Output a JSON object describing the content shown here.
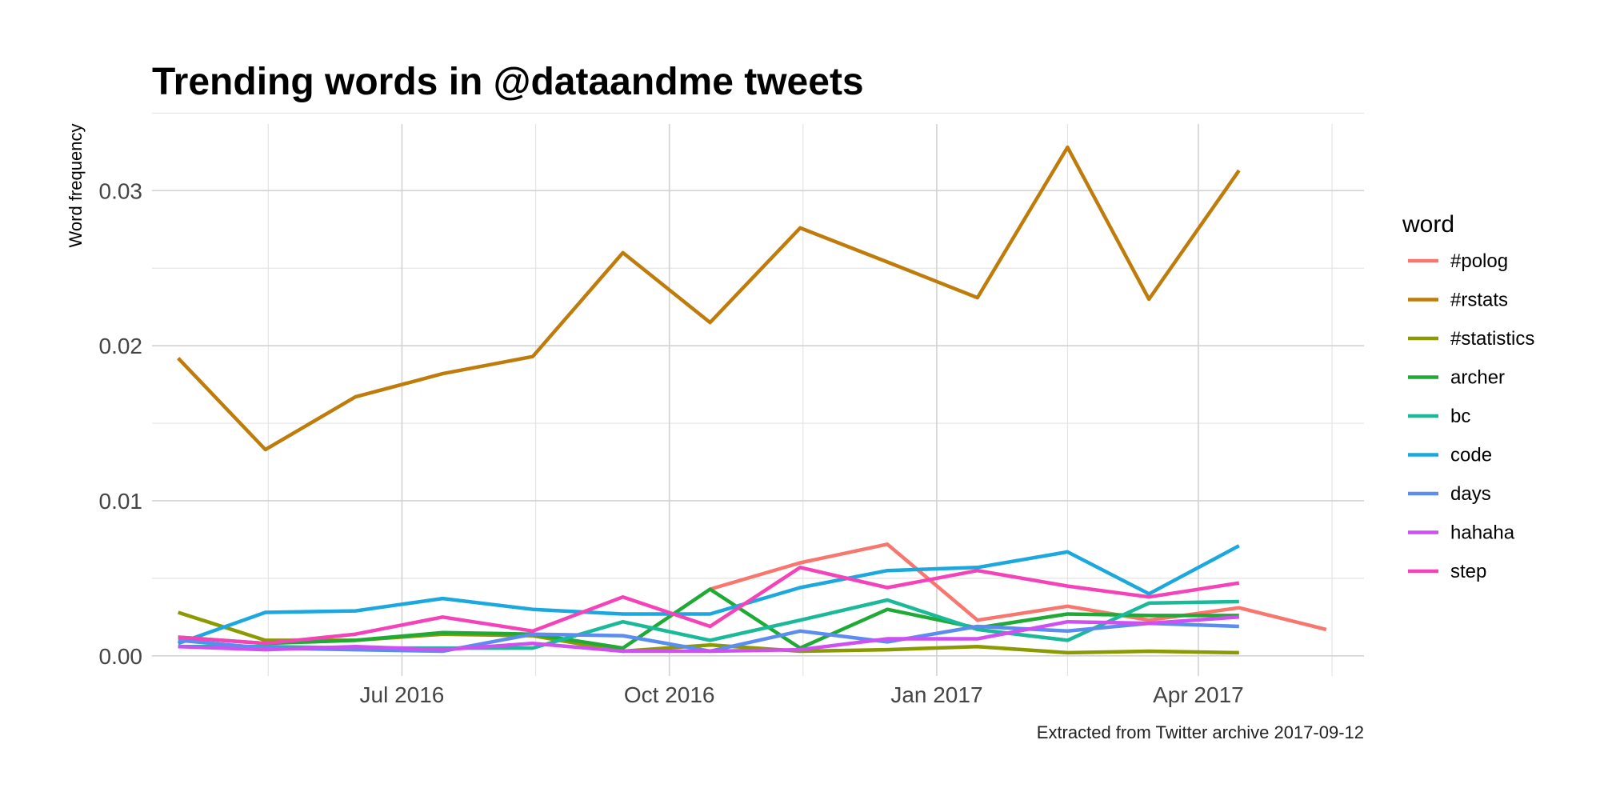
{
  "chart_data": {
    "type": "line",
    "title": "Trending words in @dataandme tweets",
    "ylabel": "Word frequency",
    "xlabel": "",
    "caption": "Extracted from Twitter archive 2017-09-12",
    "legend_title": "word",
    "legend_position": "right",
    "grid": true,
    "x": [
      "2016-04-15",
      "2016-05-15",
      "2016-06-15",
      "2016-07-15",
      "2016-08-15",
      "2016-09-15",
      "2016-10-15",
      "2016-11-15",
      "2016-12-15",
      "2017-01-15",
      "2017-02-15",
      "2017-03-15",
      "2017-04-15",
      "2017-05-15"
    ],
    "x_tick_labels": [
      {
        "label": "Jul 2016",
        "date": "2016-07-01"
      },
      {
        "label": "Oct 2016",
        "date": "2016-10-01"
      },
      {
        "label": "Jan 2017",
        "date": "2017-01-01"
      },
      {
        "label": "Apr 2017",
        "date": "2017-04-01"
      }
    ],
    "x_range": [
      "2016-04-06",
      "2017-05-28"
    ],
    "y_ticks": [
      "0.00",
      "0.01",
      "0.02",
      "0.03"
    ],
    "ylim": [
      -0.0013,
      0.0343
    ],
    "series": [
      {
        "name": "#polog",
        "color": "#F8766D",
        "values": [
          null,
          null,
          null,
          null,
          null,
          null,
          0.0043,
          0.006,
          0.0072,
          0.0023,
          0.0032,
          0.0023,
          0.0031,
          0.0017
        ]
      },
      {
        "name": "#rstats",
        "color": "#C49A00",
        "stroke": "#C07C0A",
        "values": [
          0.0192,
          0.0133,
          0.0167,
          0.0182,
          0.0193,
          0.026,
          0.0215,
          0.0276,
          0.0254,
          0.0231,
          0.0328,
          0.023,
          0.0313,
          null
        ]
      },
      {
        "name": "#statistics",
        "color": "#7CAE00",
        "stroke": "#8A9A00",
        "values": [
          0.0028,
          0.001,
          0.001,
          0.0014,
          0.0013,
          0.0003,
          0.0007,
          0.0003,
          0.0004,
          0.0006,
          0.0002,
          0.0003,
          0.0002,
          null
        ]
      },
      {
        "name": "archer",
        "color": "#0CB702",
        "stroke": "#1EAA35",
        "values": [
          0.0012,
          0.0008,
          0.001,
          0.0015,
          0.0014,
          0.0005,
          0.0043,
          0.0005,
          0.003,
          0.0018,
          0.0027,
          0.0026,
          0.0026,
          null
        ]
      },
      {
        "name": "bc",
        "color": "#00BE9A",
        "stroke": "#1AB99A",
        "values": [
          0.0006,
          0.0006,
          0.0005,
          0.0005,
          0.0005,
          0.0022,
          0.001,
          0.0023,
          0.0036,
          0.0017,
          0.001,
          0.0034,
          0.0035,
          null
        ]
      },
      {
        "name": "code",
        "color": "#00ABE5",
        "stroke": "#1BA8DE",
        "values": [
          0.0008,
          0.0028,
          0.0029,
          0.0037,
          0.003,
          0.0027,
          0.0027,
          0.0044,
          0.0055,
          0.0057,
          0.0067,
          0.004,
          0.0071,
          null
        ]
      },
      {
        "name": "days",
        "color": "#619CFF",
        "stroke": "#5B8CF0",
        "values": [
          0.001,
          0.0005,
          0.0004,
          0.0003,
          0.0014,
          0.0013,
          0.0003,
          0.0016,
          0.0009,
          0.0019,
          0.0016,
          0.0021,
          0.0019,
          null
        ]
      },
      {
        "name": "hahaha",
        "color": "#C77CFF",
        "stroke": "#D04FF0",
        "values": [
          0.0006,
          0.0004,
          0.0006,
          0.0004,
          0.0008,
          0.0003,
          0.0003,
          0.0004,
          0.0011,
          0.0011,
          0.0022,
          0.0021,
          0.0025,
          null
        ]
      },
      {
        "name": "step",
        "color": "#FF61CC",
        "stroke": "#F542B8",
        "values": [
          0.0012,
          0.0008,
          0.0014,
          0.0025,
          0.0016,
          0.0038,
          0.0019,
          0.0057,
          0.0044,
          0.0055,
          0.0045,
          0.0038,
          0.0047,
          null
        ]
      }
    ]
  }
}
